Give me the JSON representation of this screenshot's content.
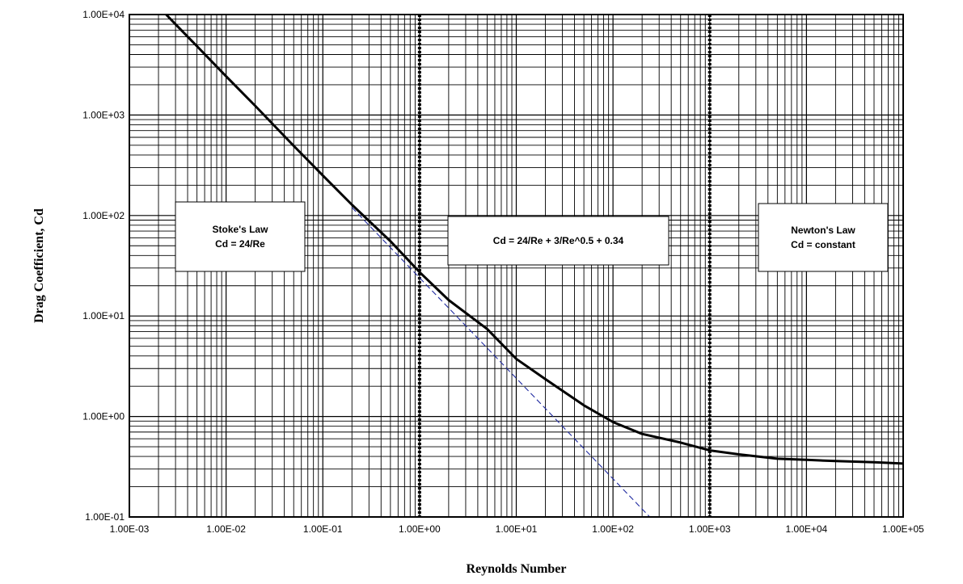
{
  "chart_data": {
    "type": "line",
    "title": "",
    "xlabel": "Reynolds Number",
    "ylabel": "Drag Coefficient, Cd",
    "x_scale": "log",
    "y_scale": "log",
    "xlim": [
      0.001,
      100000
    ],
    "ylim": [
      0.1,
      10000
    ],
    "grid": true,
    "legend": "none",
    "x_tick_labels": [
      "1.00E-03",
      "1.00E-02",
      "1.00E-01",
      "1.00E+00",
      "1.00E+01",
      "1.00E+02",
      "1.00E+03",
      "1.00E+04",
      "1.00E+05"
    ],
    "x_tick_values": [
      0.001,
      0.01,
      0.1,
      1,
      10,
      100,
      1000,
      10000,
      100000
    ],
    "y_tick_labels": [
      "1.00E-01",
      "1.00E+00",
      "1.00E+01",
      "1.00E+02",
      "1.00E+03",
      "1.00E+04"
    ],
    "y_tick_values": [
      0.1,
      1,
      10,
      100,
      1000,
      10000
    ],
    "vertical_lines": [
      1,
      1000
    ],
    "series": [
      {
        "style": "solid",
        "color": "#000000",
        "x": [
          0.0024,
          0.003,
          0.005,
          0.01,
          0.02,
          0.05,
          0.1,
          0.2,
          0.5,
          1,
          2,
          5,
          10,
          20,
          50,
          100,
          200,
          500,
          1000,
          2000,
          5000,
          10000,
          20000,
          50000,
          100000
        ],
        "y": [
          10000,
          8000,
          4843,
          2430,
          1236,
          494,
          250,
          128,
          55.5,
          27.3,
          14.4,
          7.42,
          3.74,
          2.35,
          1.29,
          0.88,
          0.67,
          0.55,
          0.46,
          0.42,
          0.38,
          0.37,
          0.36,
          0.35,
          0.34
        ]
      },
      {
        "style": "dashed",
        "color": "#1f2aa0",
        "x": [
          0.2,
          0.5,
          1,
          10,
          100,
          240
        ],
        "y": [
          120,
          48,
          24,
          2.4,
          0.24,
          0.1
        ]
      }
    ],
    "annotations": [
      {
        "id": "stokes",
        "lines": [
          "Stoke's Law",
          "Cd = 24/Re"
        ]
      },
      {
        "id": "intermediate",
        "lines": [
          "Cd = 24/Re + 3/Re^0.5 + 0.34"
        ]
      },
      {
        "id": "newton",
        "lines": [
          "Newton's Law",
          "Cd = constant"
        ]
      }
    ]
  }
}
